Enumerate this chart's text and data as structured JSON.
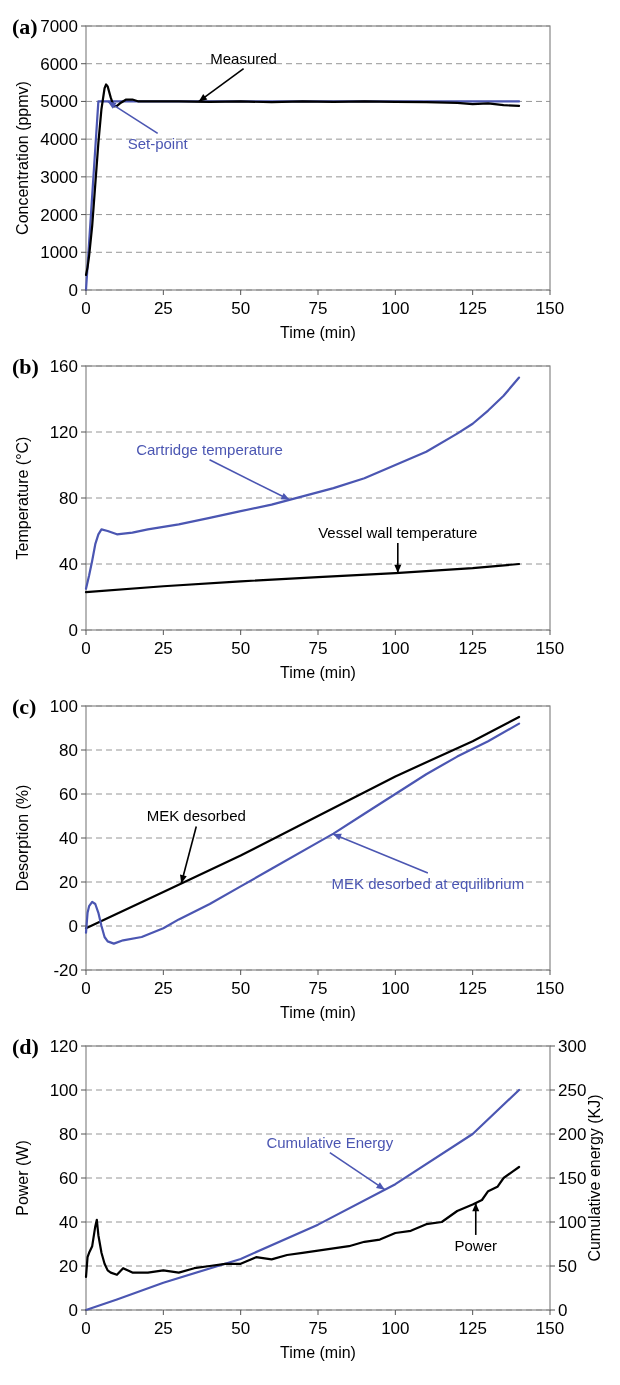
{
  "chart_data": [
    {
      "type": "line",
      "title": "(a)",
      "xlabel": "Time (min)",
      "ylabel": "Concentration (ppmv)",
      "xlim": [
        0,
        150
      ],
      "xticks": [
        0,
        25,
        50,
        75,
        100,
        125,
        150
      ],
      "ylim": [
        0,
        7000
      ],
      "yticks": [
        0,
        1000,
        2000,
        3000,
        4000,
        5000,
        6000,
        7000
      ],
      "grid": "y",
      "series": [
        {
          "name": "Set-point",
          "color": "#4b56b2",
          "x": [
            0,
            4,
            140
          ],
          "values": [
            0,
            5000,
            5000
          ]
        },
        {
          "name": "Measured",
          "color": "#000000",
          "x": [
            0,
            0.5,
            1,
            2,
            3,
            4,
            5,
            6,
            6.5,
            7,
            8,
            9,
            10,
            11,
            13,
            15,
            17,
            20,
            30,
            40,
            50,
            60,
            70,
            80,
            90,
            100,
            110,
            120,
            125,
            130,
            135,
            140
          ],
          "values": [
            400,
            600,
            900,
            1700,
            2800,
            3900,
            4800,
            5350,
            5450,
            5400,
            5100,
            4870,
            4880,
            4950,
            5050,
            5050,
            5000,
            5000,
            5000,
            4990,
            5000,
            4980,
            5000,
            4990,
            5000,
            4990,
            4980,
            4960,
            4930,
            4950,
            4900,
            4880
          ]
        }
      ]
    },
    {
      "type": "line",
      "title": "(b)",
      "xlabel": "Time (min)",
      "ylabel": "Temperature (°C)",
      "xlim": [
        0,
        150
      ],
      "xticks": [
        0,
        25,
        50,
        75,
        100,
        125,
        150
      ],
      "ylim": [
        0,
        160
      ],
      "yticks": [
        0,
        40,
        80,
        120,
        160
      ],
      "grid": "y",
      "series": [
        {
          "name": "Cartridge temperature",
          "color": "#4b56b2",
          "x": [
            0,
            1,
            2,
            3,
            4,
            5,
            7,
            10,
            15,
            20,
            30,
            40,
            50,
            60,
            70,
            80,
            90,
            100,
            110,
            120,
            125,
            130,
            135,
            140
          ],
          "values": [
            25,
            33,
            42,
            52,
            58,
            61,
            60,
            58,
            59,
            61,
            64,
            68,
            72,
            76,
            81,
            86,
            92,
            100,
            108,
            119,
            125,
            133,
            142,
            153
          ]
        },
        {
          "name": "Vessel wall temperature",
          "color": "#000000",
          "x": [
            0,
            25,
            50,
            75,
            100,
            125,
            140
          ],
          "values": [
            23,
            26.5,
            29.5,
            32,
            34.5,
            37.5,
            40
          ]
        }
      ]
    },
    {
      "type": "line",
      "title": "(c)",
      "xlabel": "Time (min)",
      "ylabel": "Desorption (%)",
      "xlim": [
        0,
        150
      ],
      "xticks": [
        0,
        25,
        50,
        75,
        100,
        125,
        150
      ],
      "ylim": [
        -20,
        100
      ],
      "yticks": [
        -20,
        0,
        20,
        40,
        60,
        80,
        100
      ],
      "grid": "y",
      "series": [
        {
          "name": "MEK desorbed",
          "color": "#000000",
          "x": [
            0,
            25,
            50,
            75,
            100,
            125,
            140
          ],
          "values": [
            -1,
            15.5,
            32,
            50,
            68,
            84,
            95
          ]
        },
        {
          "name": "MEK desorbed at equilibrium",
          "color": "#4b56b2",
          "x": [
            0,
            0.5,
            1,
            2,
            3,
            4,
            5,
            6,
            7,
            9,
            12,
            18,
            25,
            30,
            40,
            50,
            60,
            75,
            80,
            90,
            100,
            110,
            120,
            130,
            140
          ],
          "values": [
            -3,
            6,
            9,
            11,
            10,
            6,
            0,
            -5,
            -7,
            -8,
            -6.5,
            -5,
            -1,
            3,
            10,
            18,
            26,
            38,
            42,
            51,
            60,
            69,
            77,
            84,
            92
          ]
        }
      ]
    },
    {
      "type": "line",
      "title": "(d)",
      "xlabel": "Time (min)",
      "ylabel": "Power (W)",
      "y2label": "Cumulative energy (KJ)",
      "xlim": [
        0,
        150
      ],
      "xticks": [
        0,
        25,
        50,
        75,
        100,
        125,
        150
      ],
      "ylim": [
        0,
        120
      ],
      "yticks": [
        0,
        20,
        40,
        60,
        80,
        100,
        120
      ],
      "y2lim": [
        0,
        300
      ],
      "y2ticks": [
        0,
        50,
        100,
        150,
        200,
        250,
        300
      ],
      "grid": "y",
      "series": [
        {
          "name": "Cumulative Energy",
          "color": "#4b56b2",
          "axis": "y2",
          "x": [
            0,
            10,
            25,
            50,
            75,
            100,
            125,
            140
          ],
          "values": [
            0,
            12,
            31,
            58,
            97,
            143,
            200,
            250
          ]
        },
        {
          "name": "Power",
          "color": "#000000",
          "x": [
            0,
            0.5,
            1,
            2,
            3,
            3.5,
            4,
            5,
            6,
            7,
            8,
            10,
            12,
            15,
            20,
            25,
            30,
            35,
            40,
            45,
            50,
            55,
            60,
            65,
            70,
            75,
            80,
            85,
            90,
            95,
            100,
            105,
            110,
            115,
            120,
            125,
            128,
            130,
            133,
            135,
            138,
            140
          ],
          "values": [
            15,
            24,
            26,
            29,
            38,
            41,
            34,
            26,
            21,
            18,
            17,
            16,
            19,
            17,
            17,
            18,
            17,
            19,
            20,
            21,
            21,
            24,
            23,
            25,
            26,
            27,
            28,
            29,
            31,
            32,
            35,
            36,
            39,
            40,
            45,
            48,
            50,
            54,
            56,
            60,
            63,
            65
          ]
        }
      ]
    }
  ]
}
